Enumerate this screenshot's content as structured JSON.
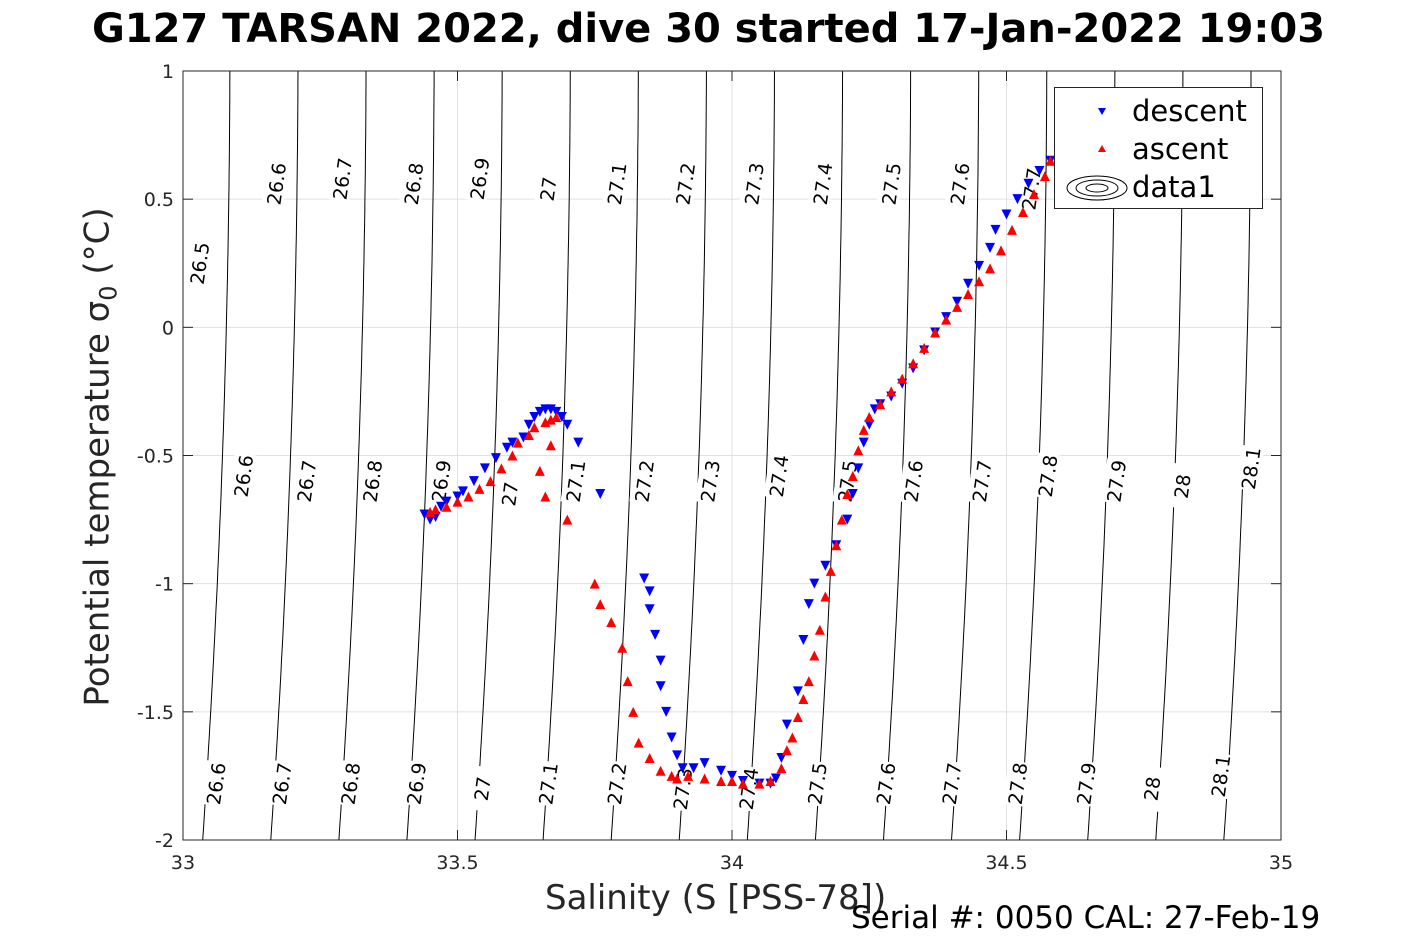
{
  "title": "G127 TARSAN 2022, dive 30 started 17-Jan-2022 19:03",
  "footer": "Serial #: 0050  CAL: 27-Feb-19",
  "colors": {
    "descent": "#0000ff",
    "ascent": "#ff0000",
    "grid": "#e0e0e0",
    "contour": "#000000",
    "axis": "#262626"
  },
  "chart_data": {
    "type": "scatter",
    "title": "G127 TARSAN 2022, dive 30 started 17-Jan-2022 19:03",
    "xlabel": "Salinity (S [PSS-78])",
    "ylabel_main": "Potential temperature ",
    "ylabel_sym": "σ",
    "ylabel_sub": "0",
    "ylabel_unit": " (°C)",
    "xlim": [
      33,
      35
    ],
    "ylim": [
      -2,
      1
    ],
    "xticks": [
      33,
      33.5,
      34,
      34.5,
      35
    ],
    "xtick_labels": [
      "33",
      "33.5",
      "34",
      "34.5",
      "35"
    ],
    "yticks": [
      -2,
      -1.5,
      -1,
      -0.5,
      0,
      0.5,
      1
    ],
    "ytick_labels": [
      "-2",
      "-1.5",
      "-1",
      "-0.5",
      "0",
      "0.5",
      "1"
    ],
    "grid": true,
    "legend": {
      "location": "top-right",
      "entries": [
        "descent",
        "ascent",
        "data1"
      ]
    },
    "contours": {
      "levels": [
        26.5,
        26.6,
        26.7,
        26.8,
        26.9,
        27,
        27.1,
        27.2,
        27.3,
        27.4,
        27.5,
        27.6,
        27.7,
        27.8,
        27.9,
        28,
        28.1
      ],
      "labels": [
        {
          "text": "26.5",
          "s": 33.03,
          "t": 0.25
        },
        {
          "text": "26.6",
          "s": 33.17,
          "t": 0.56
        },
        {
          "text": "26.7",
          "s": 33.29,
          "t": 0.58
        },
        {
          "text": "26.8",
          "s": 33.42,
          "t": 0.56
        },
        {
          "text": "26.9",
          "s": 33.54,
          "t": 0.58
        },
        {
          "text": "27",
          "s": 33.665,
          "t": 0.54
        },
        {
          "text": "27.1",
          "s": 33.79,
          "t": 0.56
        },
        {
          "text": "27.2",
          "s": 33.915,
          "t": 0.56
        },
        {
          "text": "27.3",
          "s": 34.04,
          "t": 0.56
        },
        {
          "text": "27.4",
          "s": 34.165,
          "t": 0.56
        },
        {
          "text": "27.5",
          "s": 34.29,
          "t": 0.56
        },
        {
          "text": "27.6",
          "s": 34.415,
          "t": 0.56
        },
        {
          "text": "27.7",
          "s": 34.545,
          "t": 0.54
        },
        {
          "text": "26.6",
          "s": 33.11,
          "t": -0.58
        },
        {
          "text": "26.7",
          "s": 33.225,
          "t": -0.6
        },
        {
          "text": "26.8",
          "s": 33.345,
          "t": -0.6
        },
        {
          "text": "26.9",
          "s": 33.47,
          "t": -0.6
        },
        {
          "text": "27",
          "s": 33.595,
          "t": -0.65
        },
        {
          "text": "27.1",
          "s": 33.715,
          "t": -0.6
        },
        {
          "text": "27.2",
          "s": 33.84,
          "t": -0.6
        },
        {
          "text": "27.3",
          "s": 33.96,
          "t": -0.6
        },
        {
          "text": "27.4",
          "s": 34.085,
          "t": -0.58
        },
        {
          "text": "27.5",
          "s": 34.21,
          "t": -0.6
        },
        {
          "text": "27.6",
          "s": 34.33,
          "t": -0.6
        },
        {
          "text": "27.7",
          "s": 34.455,
          "t": -0.6
        },
        {
          "text": "27.8",
          "s": 34.575,
          "t": -0.58
        },
        {
          "text": "27.9",
          "s": 34.7,
          "t": -0.6
        },
        {
          "text": "28",
          "s": 34.82,
          "t": -0.62
        },
        {
          "text": "28.1",
          "s": 34.945,
          "t": -0.55
        },
        {
          "text": "26.6",
          "s": 33.06,
          "t": -1.78
        },
        {
          "text": "26.7",
          "s": 33.18,
          "t": -1.78
        },
        {
          "text": "26.8",
          "s": 33.305,
          "t": -1.78
        },
        {
          "text": "26.9",
          "s": 33.425,
          "t": -1.78
        },
        {
          "text": "27",
          "s": 33.545,
          "t": -1.8
        },
        {
          "text": "27.1",
          "s": 33.665,
          "t": -1.78
        },
        {
          "text": "27.2",
          "s": 33.79,
          "t": -1.78
        },
        {
          "text": "27.3",
          "s": 33.91,
          "t": -1.8
        },
        {
          "text": "27.4",
          "s": 34.03,
          "t": -1.8
        },
        {
          "text": "27.5",
          "s": 34.155,
          "t": -1.78
        },
        {
          "text": "27.6",
          "s": 34.28,
          "t": -1.78
        },
        {
          "text": "27.7",
          "s": 34.4,
          "t": -1.78
        },
        {
          "text": "27.8",
          "s": 34.52,
          "t": -1.78
        },
        {
          "text": "27.9",
          "s": 34.645,
          "t": -1.78
        },
        {
          "text": "28",
          "s": 34.765,
          "t": -1.8
        },
        {
          "text": "28.1",
          "s": 34.89,
          "t": -1.75
        }
      ]
    },
    "series": [
      {
        "name": "descent",
        "marker": "triangle-down",
        "x": [
          33.44,
          33.45,
          33.46,
          33.47,
          33.48,
          33.5,
          33.51,
          33.53,
          33.55,
          33.57,
          33.59,
          33.6,
          33.62,
          33.63,
          33.64,
          33.65,
          33.66,
          33.67,
          33.68,
          33.69,
          33.7,
          33.72,
          33.76,
          33.84,
          33.85,
          33.85,
          33.86,
          33.87,
          33.87,
          33.88,
          33.89,
          33.9,
          33.91,
          33.93,
          33.95,
          33.98,
          34.0,
          34.02,
          34.05,
          34.07,
          34.08,
          34.09,
          34.1,
          34.12,
          34.13,
          34.14,
          34.15,
          34.17,
          34.19,
          34.21,
          34.22,
          34.23,
          34.24,
          34.25,
          34.26,
          34.27,
          34.29,
          34.31,
          34.33,
          34.35,
          34.37,
          34.39,
          34.41,
          34.43,
          34.45,
          34.47,
          34.48,
          34.5,
          34.52,
          34.54,
          34.56,
          34.58
        ],
        "y": [
          -0.73,
          -0.75,
          -0.74,
          -0.7,
          -0.68,
          -0.66,
          -0.64,
          -0.6,
          -0.55,
          -0.51,
          -0.47,
          -0.45,
          -0.43,
          -0.38,
          -0.35,
          -0.33,
          -0.32,
          -0.32,
          -0.33,
          -0.35,
          -0.38,
          -0.45,
          -0.65,
          -0.98,
          -1.03,
          -1.1,
          -1.2,
          -1.3,
          -1.4,
          -1.5,
          -1.6,
          -1.67,
          -1.72,
          -1.72,
          -1.7,
          -1.73,
          -1.75,
          -1.77,
          -1.78,
          -1.78,
          -1.76,
          -1.68,
          -1.55,
          -1.42,
          -1.22,
          -1.08,
          -1.0,
          -0.93,
          -0.85,
          -0.75,
          -0.65,
          -0.55,
          -0.45,
          -0.38,
          -0.32,
          -0.3,
          -0.27,
          -0.22,
          -0.16,
          -0.09,
          -0.02,
          0.04,
          0.1,
          0.17,
          0.24,
          0.31,
          0.38,
          0.44,
          0.5,
          0.56,
          0.61,
          0.65
        ]
      },
      {
        "name": "ascent",
        "marker": "triangle-up",
        "x": [
          33.45,
          33.46,
          33.48,
          33.5,
          33.52,
          33.54,
          33.56,
          33.58,
          33.6,
          33.61,
          33.63,
          33.64,
          33.66,
          33.67,
          33.68,
          33.67,
          33.65,
          33.66,
          33.7,
          33.75,
          33.76,
          33.78,
          33.8,
          33.81,
          33.82,
          33.83,
          33.85,
          33.87,
          33.89,
          33.9,
          33.92,
          33.95,
          33.98,
          34.0,
          34.02,
          34.05,
          34.07,
          34.09,
          34.1,
          34.11,
          34.12,
          34.13,
          34.14,
          34.15,
          34.16,
          34.17,
          34.18,
          34.19,
          34.2,
          34.21,
          34.22,
          34.23,
          34.24,
          34.25,
          34.27,
          34.29,
          34.31,
          34.33,
          34.35,
          34.37,
          34.39,
          34.41,
          34.43,
          34.45,
          34.47,
          34.49,
          34.51,
          34.53,
          34.55,
          34.57,
          34.58
        ],
        "y": [
          -0.72,
          -0.71,
          -0.7,
          -0.68,
          -0.66,
          -0.63,
          -0.6,
          -0.55,
          -0.5,
          -0.45,
          -0.42,
          -0.39,
          -0.37,
          -0.36,
          -0.35,
          -0.46,
          -0.56,
          -0.66,
          -0.75,
          -1.0,
          -1.08,
          -1.15,
          -1.25,
          -1.38,
          -1.5,
          -1.62,
          -1.68,
          -1.73,
          -1.75,
          -1.76,
          -1.75,
          -1.76,
          -1.77,
          -1.77,
          -1.78,
          -1.78,
          -1.77,
          -1.72,
          -1.65,
          -1.6,
          -1.52,
          -1.45,
          -1.38,
          -1.28,
          -1.18,
          -1.05,
          -0.95,
          -0.85,
          -0.75,
          -0.65,
          -0.58,
          -0.48,
          -0.4,
          -0.35,
          -0.3,
          -0.25,
          -0.2,
          -0.14,
          -0.08,
          -0.02,
          0.03,
          0.08,
          0.13,
          0.18,
          0.23,
          0.3,
          0.38,
          0.45,
          0.52,
          0.59,
          0.65
        ]
      }
    ]
  }
}
